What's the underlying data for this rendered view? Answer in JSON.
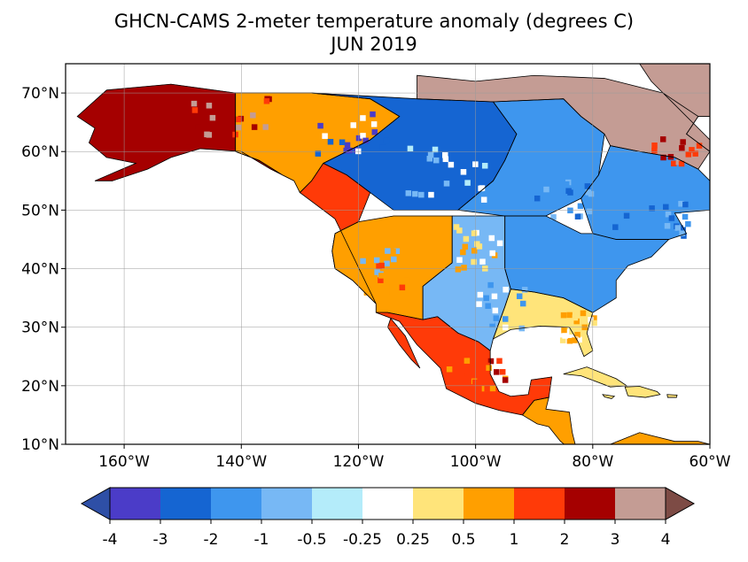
{
  "title": "GHCN-CAMS 2-meter temperature anomaly (degrees C)",
  "subtitle": "JUN 2019",
  "map": {
    "projection": "equirectangular",
    "lon_range": [
      -170,
      -60
    ],
    "lat_range": [
      10,
      75
    ],
    "grid": true,
    "lon_ticks": [
      {
        "value": -160,
        "label": "160°W"
      },
      {
        "value": -140,
        "label": "140°W"
      },
      {
        "value": -120,
        "label": "120°W"
      },
      {
        "value": -100,
        "label": "100°W"
      },
      {
        "value": -80,
        "label": "80°W"
      },
      {
        "value": -60,
        "label": "60°W"
      }
    ],
    "lat_ticks": [
      {
        "value": 70,
        "label": "70°N"
      },
      {
        "value": 60,
        "label": "60°N"
      },
      {
        "value": 50,
        "label": "50°N"
      },
      {
        "value": 40,
        "label": "40°N"
      },
      {
        "value": 30,
        "label": "30°N"
      },
      {
        "value": 20,
        "label": "20°N"
      },
      {
        "value": 10,
        "label": "10°N"
      }
    ],
    "anomaly_regions": [
      {
        "name": "Alaska",
        "class": 10
      },
      {
        "name": "Northwest Canada",
        "class": 8
      },
      {
        "name": "Northeast Canada",
        "class": 11
      },
      {
        "name": "Central Canada",
        "class": 2
      },
      {
        "name": "Hudson Bay region",
        "class": 3
      },
      {
        "name": "Quebec",
        "class": 3
      },
      {
        "name": "Pacific Northwest coast",
        "class": 9
      },
      {
        "name": "US West",
        "class": 8
      },
      {
        "name": "US Plains",
        "class": 4
      },
      {
        "name": "US Midwest",
        "class": 3
      },
      {
        "name": "US Southeast",
        "class": 7
      },
      {
        "name": "Mexico",
        "class": 9
      },
      {
        "name": "Central America",
        "class": 8
      },
      {
        "name": "Caribbean",
        "class": 7
      },
      {
        "name": "Greenland edge",
        "class": 11
      }
    ]
  },
  "colorbar": {
    "bounds": [
      "-4",
      "-3",
      "-2",
      "-1",
      "-0.5",
      "-0.25",
      "0.25",
      "0.5",
      "1",
      "2",
      "3",
      "4"
    ],
    "colors": [
      "#2e4fa6",
      "#4b3cc8",
      "#1565d2",
      "#3e96ee",
      "#77b8f5",
      "#b4ecfa",
      "#ffffff",
      "#ffe47a",
      "#ff9f00",
      "#ff3a08",
      "#a50000",
      "#c49c94",
      "#7d4b45"
    ],
    "extend": "both"
  }
}
